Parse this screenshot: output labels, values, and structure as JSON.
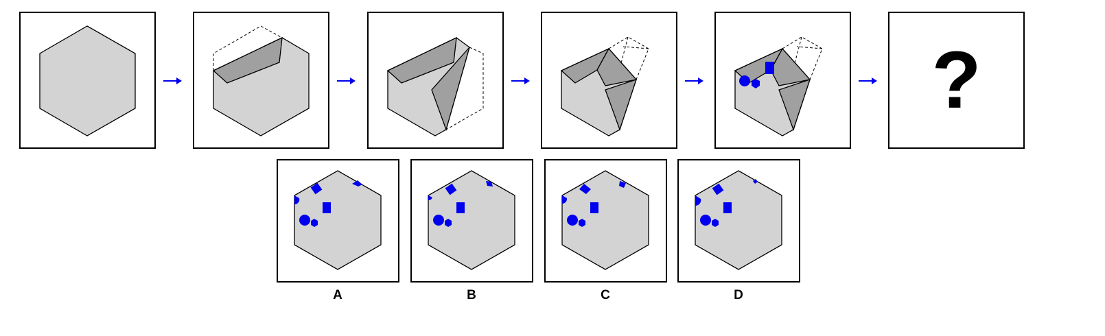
{
  "sequence": {
    "steps": 5,
    "question_mark": "?"
  },
  "options": [
    {
      "label": "A"
    },
    {
      "label": "B"
    },
    {
      "label": "C"
    },
    {
      "label": "D"
    }
  ],
  "colors": {
    "paper": "#d3d3d3",
    "fold": "#a0a0a0",
    "hole": "#0000ee",
    "arrow": "#0000ee",
    "outline": "#000000"
  },
  "icons": [
    "right-arrow-icon",
    "question-mark-icon"
  ]
}
